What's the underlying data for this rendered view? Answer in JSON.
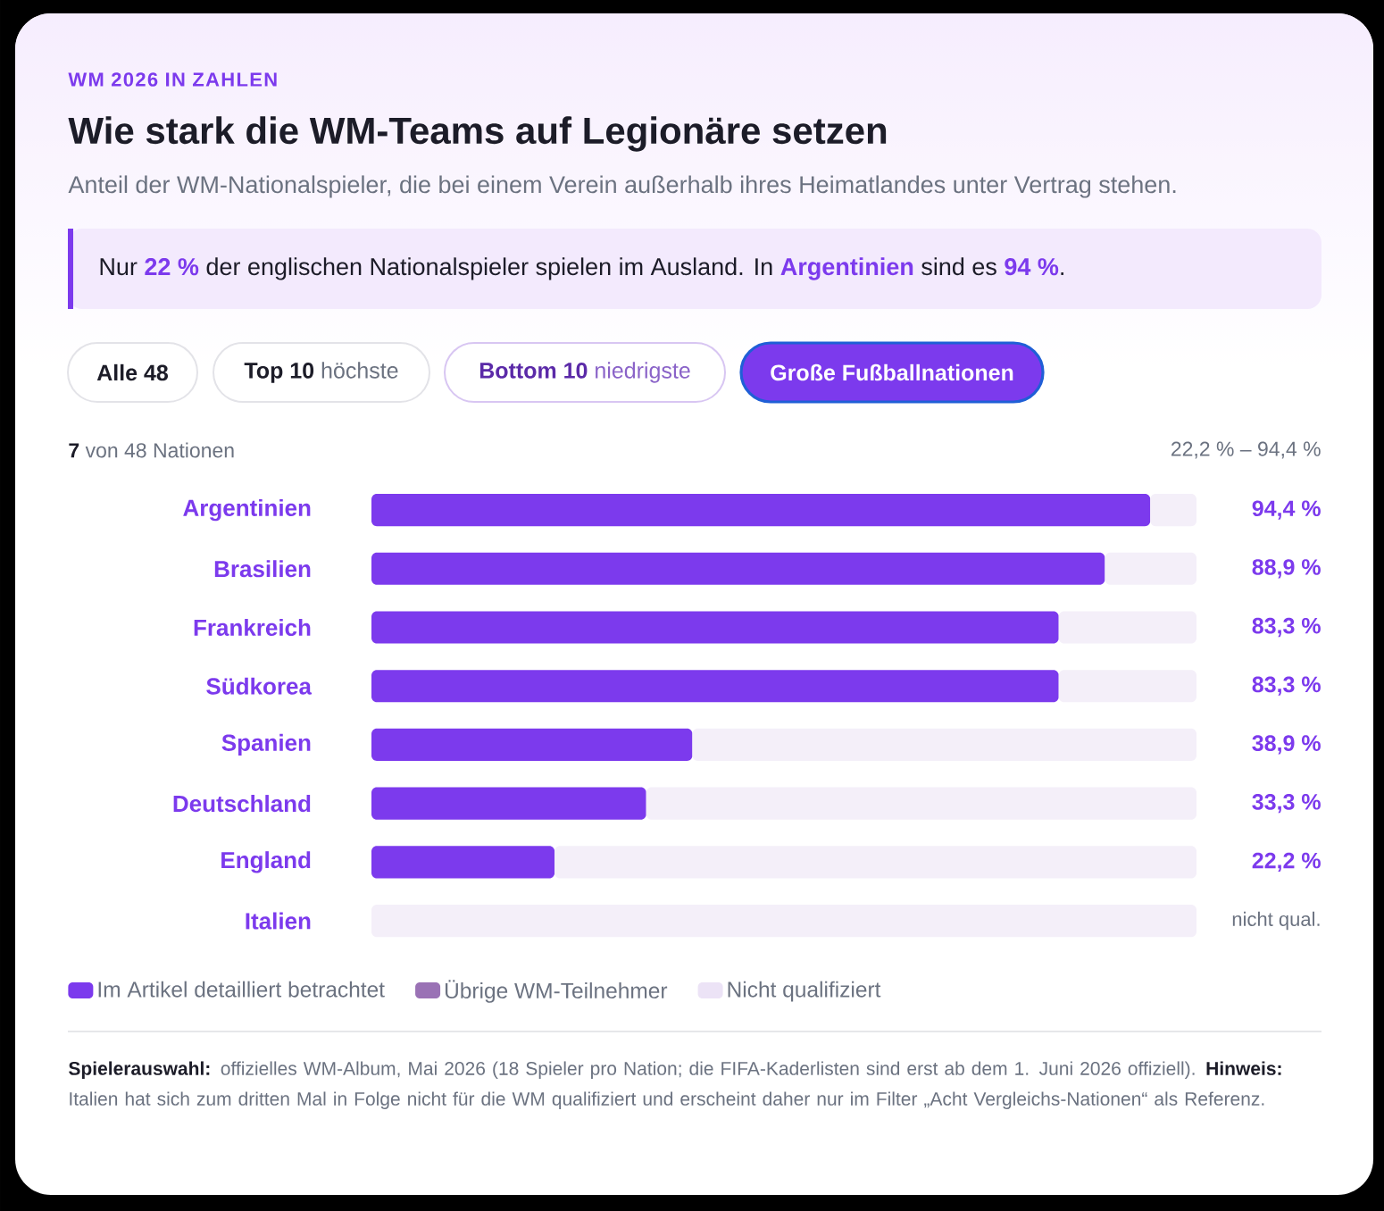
{
  "chart_data": {
    "type": "bar",
    "orientation": "horizontal",
    "stacked": true,
    "title": "Wie stark die WM-Teams auf Legionäre setzen",
    "subtitle": "Anteil der WM-Nationalspieler, die bei einem Verein außerhalb ihres Heimatlandes unter Vertrag stehen.",
    "categories": [
      "Argentinien",
      "Brasilien",
      "Frankreich",
      "Südkorea",
      "Spanien",
      "Deutschland",
      "England",
      "Italien"
    ],
    "series": [
      {
        "name": "Im Artikel detailliert betrachtet",
        "color": "#7c3aed",
        "values": [
          94.4,
          88.9,
          83.3,
          83.3,
          38.9,
          33.3,
          22.2,
          null
        ],
        "value_labels": [
          "94,4 %",
          "88,9 %",
          "83,3 %",
          "83,3 %",
          "38,9 %",
          "33,3 %",
          "22,2 %",
          "nicht qual."
        ]
      },
      {
        "color": "#f4eff9",
        "values": [
          5.6,
          11.1,
          16.7,
          16.7,
          61.1,
          66.7,
          77.8,
          100
        ]
      },
      {
        "name": "Übrige WM-Teilnehmer",
        "color": "#9a72b5",
        "values": [
          null,
          null,
          null,
          null,
          null,
          null,
          null,
          null
        ]
      },
      {
        "name": "Nicht qualifiziert",
        "color": "#ece3f6",
        "values": [
          null,
          null,
          null,
          null,
          null,
          null,
          null,
          null
        ]
      }
    ],
    "xlim": [
      0,
      100
    ],
    "tick_labels": "y",
    "legend": "bottom",
    "annotations": [
      "WM 2026 IN ZAHLEN",
      "Nur **22 %** der englischen Nationalspieler spielen im Ausland. In **Argentinien** sind es **94 %**.",
      "Alle 48",
      "**Top 10** höchste",
      "**Bottom 10** niedrigste",
      "Große Fußballnationen",
      "**7** von 48 Nationen",
      "22,2 % – 94,4 %",
      "**Spielerauswahl:** offizielles WM-Album, Mai 2026 (18 Spieler pro Nation; die FIFA-Kaderlisten sind erst ab dem 1. Juni 2026 offiziell). **Hinweis:** Italien hat sich zum dritten Mal in Folge nicht für die WM qualifiziert und erscheint daher nur im Filter „Acht Vergleichs-Nationen“ als Referenz."
    ]
  }
}
